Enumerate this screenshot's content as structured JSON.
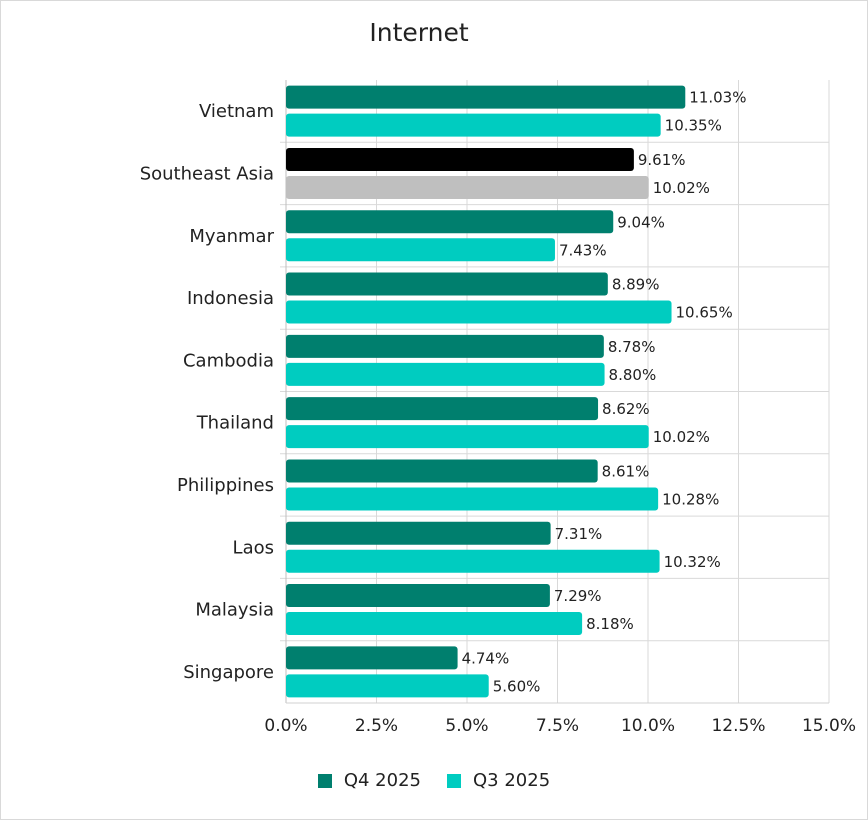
{
  "chart_data": {
    "type": "bar",
    "orientation": "horizontal",
    "title": "Internet",
    "categories": [
      "Vietnam",
      "Southeast Asia",
      "Myanmar",
      "Indonesia",
      "Cambodia",
      "Thailand",
      "Philippines",
      "Laos",
      "Malaysia",
      "Singapore"
    ],
    "series": [
      {
        "name": "Q4 2025",
        "color": "#007F6E",
        "values": [
          11.03,
          9.61,
          9.04,
          8.89,
          8.78,
          8.62,
          8.61,
          7.31,
          7.29,
          4.74
        ],
        "labels": [
          "11.03%",
          "9.61%",
          "9.04%",
          "8.89%",
          "8.78%",
          "8.62%",
          "8.61%",
          "7.31%",
          "7.29%",
          "4.74%"
        ]
      },
      {
        "name": "Q3 2025",
        "color": "#00CCC0",
        "values": [
          10.35,
          10.02,
          7.43,
          10.65,
          8.8,
          10.02,
          10.28,
          10.32,
          8.18,
          5.6
        ],
        "labels": [
          "10.35%",
          "10.02%",
          "7.43%",
          "10.65%",
          "8.80%",
          "10.02%",
          "10.28%",
          "10.32%",
          "8.18%",
          "5.60%"
        ]
      }
    ],
    "highlight": {
      "category": "Southeast Asia",
      "colors": [
        "#000000",
        "#BFBFBF"
      ]
    },
    "xlim": [
      0,
      15
    ],
    "xticks": [
      0,
      2.5,
      5,
      7.5,
      10,
      12.5,
      15
    ],
    "xtick_labels": [
      "0.0%",
      "2.5%",
      "5.0%",
      "7.5%",
      "10.0%",
      "12.5%",
      "15.0%"
    ],
    "grid": true,
    "legend_position": "bottom"
  }
}
